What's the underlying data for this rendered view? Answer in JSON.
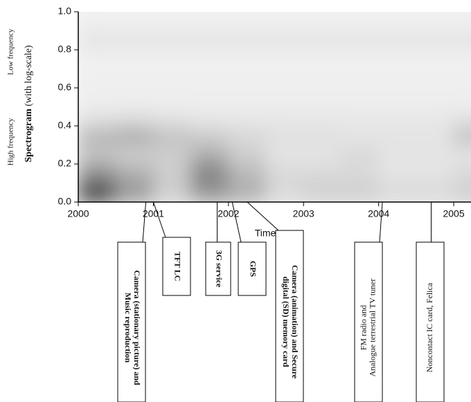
{
  "chart_data": {
    "type": "heatmap",
    "ylabel_bold": "Spectrogram",
    "ylabel": "(with log-scale)",
    "low_label": "Low frequency",
    "high_label": "High frequency",
    "xlabel": "Time",
    "xlim": [
      2000,
      2005.23
    ],
    "ylim": [
      0,
      1
    ],
    "xticks": [
      2000,
      2001,
      2002,
      2003,
      2004,
      2005
    ],
    "yticks": [
      {
        "value": 0,
        "label": "0.0"
      },
      0.2,
      0.4,
      0.6,
      0.8,
      {
        "value": 1,
        "label": "1.0"
      }
    ],
    "x": [
      2000.25,
      2000.75,
      2001.25,
      2001.75,
      2002.25,
      2002.75,
      2003.25,
      2003.75,
      2004.25,
      2004.75,
      2005.25
    ],
    "y": [
      0.05,
      0.15,
      0.25,
      0.35,
      0.45,
      0.55,
      0.65,
      0.75,
      0.85,
      0.95
    ],
    "z": [
      [
        0.85,
        0.45,
        0.2,
        0.45,
        0.35,
        0.15,
        0.2,
        0.2,
        0.15,
        0.15,
        0.2
      ],
      [
        0.5,
        0.35,
        0.2,
        0.55,
        0.3,
        0.15,
        0.15,
        0.15,
        0.1,
        0.1,
        0.15
      ],
      [
        0.25,
        0.2,
        0.2,
        0.35,
        0.2,
        0.1,
        0.1,
        0.15,
        0.1,
        0.1,
        0.1
      ],
      [
        0.3,
        0.35,
        0.25,
        0.2,
        0.15,
        0.12,
        0.12,
        0.1,
        0.1,
        0.1,
        0.25
      ],
      [
        0.1,
        0.12,
        0.1,
        0.08,
        0.08,
        0.08,
        0.08,
        0.08,
        0.08,
        0.08,
        0.1
      ],
      [
        0.05,
        0.05,
        0.05,
        0.05,
        0.05,
        0.05,
        0.05,
        0.05,
        0.05,
        0.05,
        0.05
      ],
      [
        0.05,
        0.05,
        0.05,
        0.05,
        0.05,
        0.05,
        0.05,
        0.05,
        0.05,
        0.05,
        0.05
      ],
      [
        0.04,
        0.04,
        0.04,
        0.04,
        0.04,
        0.04,
        0.04,
        0.04,
        0.04,
        0.04,
        0.04
      ],
      [
        0.1,
        0.1,
        0.1,
        0.1,
        0.1,
        0.1,
        0.1,
        0.1,
        0.1,
        0.1,
        0.1
      ],
      [
        0.05,
        0.05,
        0.05,
        0.05,
        0.05,
        0.05,
        0.05,
        0.05,
        0.05,
        0.05,
        0.05
      ]
    ],
    "annotations": [
      {
        "lines": [
          "Camera (stationary picture) and",
          "Music reproduction"
        ],
        "x": 2000.9
      },
      {
        "lines": [
          "TFT LC"
        ],
        "x": 2001.0
      },
      {
        "lines": [
          "3G service"
        ],
        "x": 2001.85
      },
      {
        "lines": [
          "GPS"
        ],
        "x": 2002.05
      },
      {
        "lines": [
          "Camera (animation) and Secure",
          "digital (SD) memory card"
        ],
        "x": 2002.25
      },
      {
        "lines": [
          "FM radio and",
          "Analogue terrestrial TV tuner"
        ],
        "x": 2004.05
      },
      {
        "lines": [
          "Noncontact IC card, Felica"
        ],
        "x": 2004.7
      }
    ]
  }
}
